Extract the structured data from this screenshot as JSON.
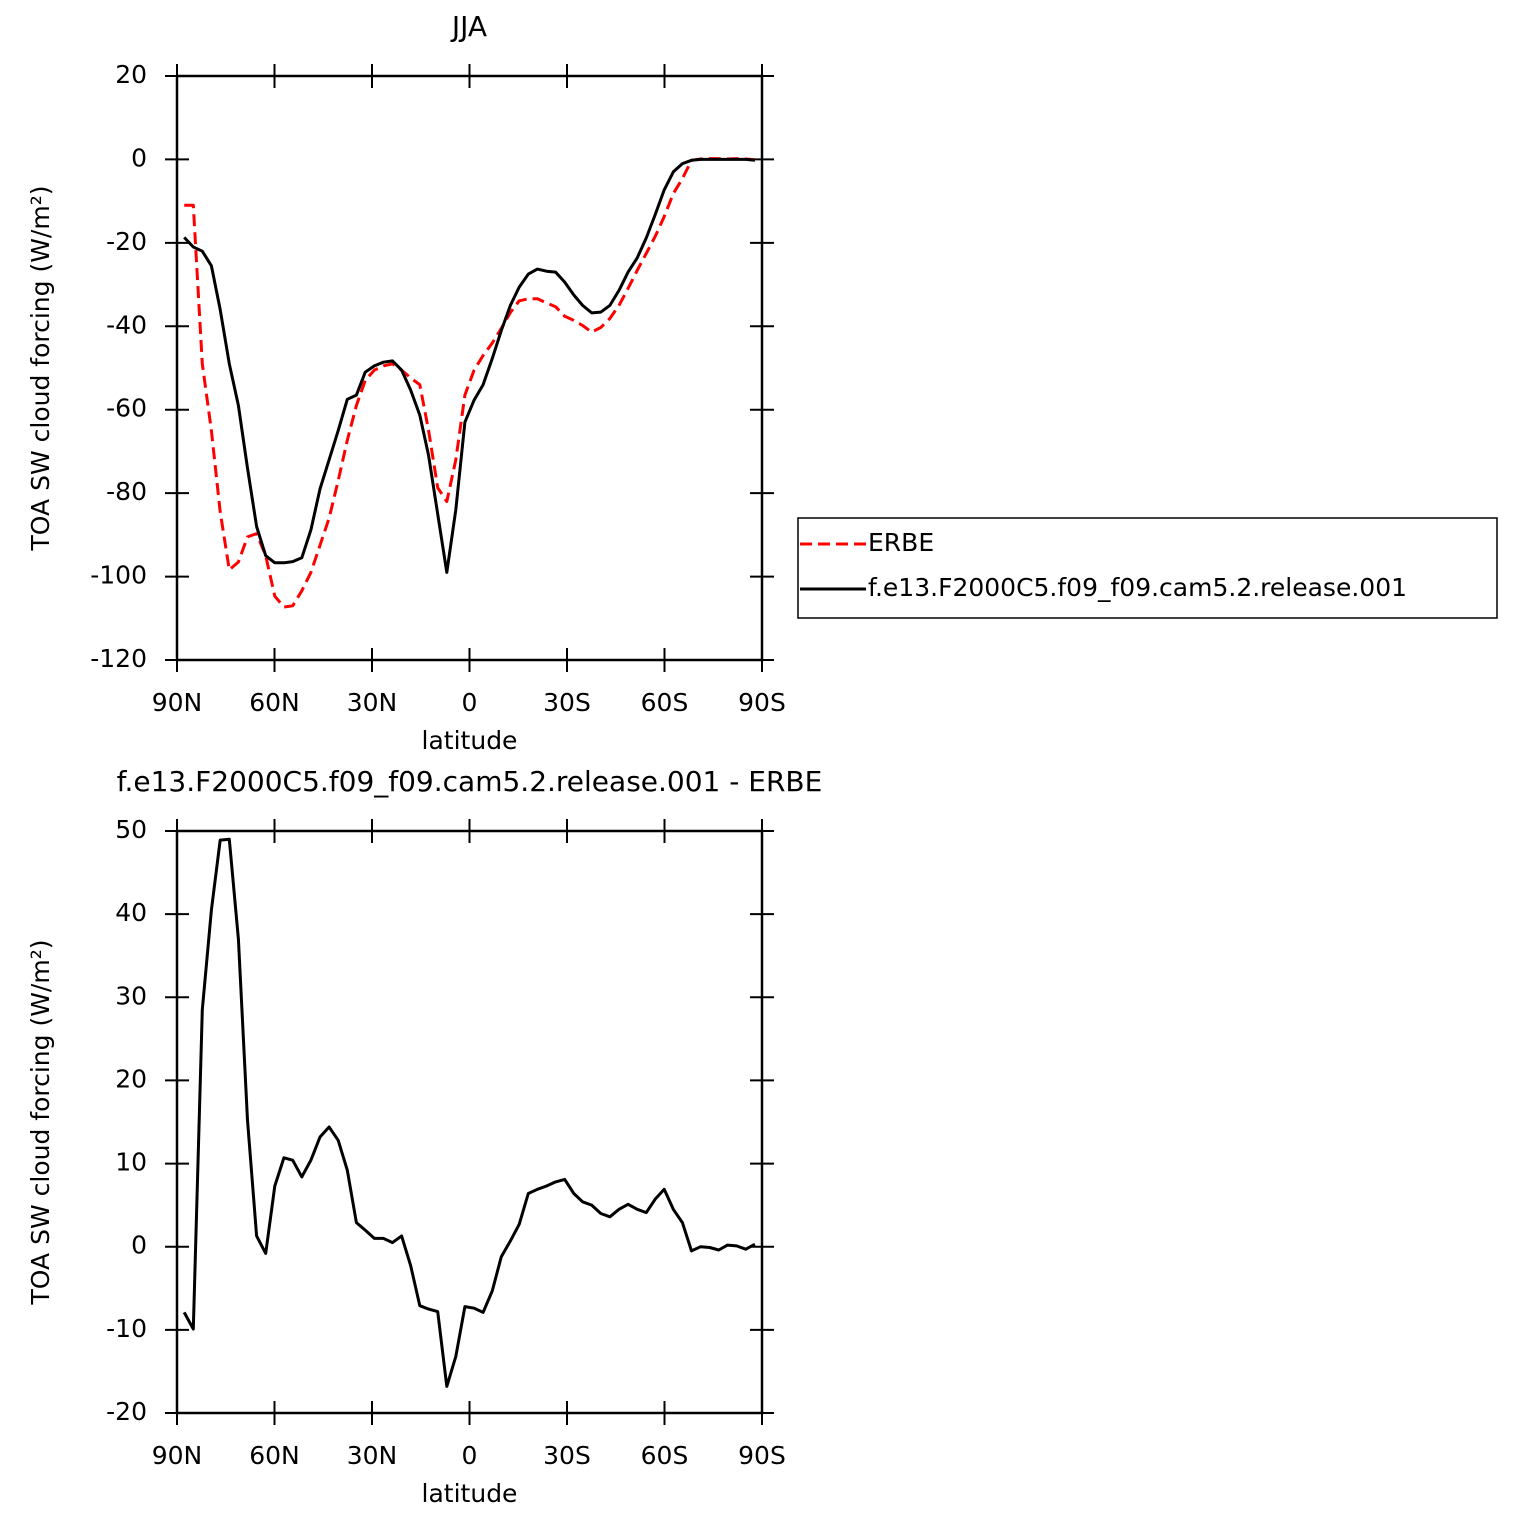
{
  "chart_data": [
    {
      "type": "line",
      "title": "JJA",
      "xlabel": "latitude",
      "ylabel": "TOA SW cloud forcing (W/m²)",
      "xlim": [
        90,
        -90
      ],
      "ylim": [
        -120,
        20
      ],
      "xticks": [
        {
          "value": 90,
          "label": "90N"
        },
        {
          "value": 60,
          "label": "60N"
        },
        {
          "value": 30,
          "label": "30N"
        },
        0,
        {
          "value": -30,
          "label": "30S"
        },
        {
          "value": -60,
          "label": "60S"
        },
        {
          "value": -90,
          "label": "90S"
        }
      ],
      "yticks": [
        -120,
        -100,
        -80,
        -60,
        -40,
        -20,
        0,
        20
      ],
      "legend": "right",
      "x": [
        87.8,
        85.0,
        82.2,
        79.4,
        76.7,
        73.9,
        71.1,
        68.3,
        65.5,
        62.7,
        59.9,
        57.1,
        54.4,
        51.6,
        48.8,
        46.0,
        43.2,
        40.4,
        37.6,
        34.8,
        32.1,
        29.3,
        26.5,
        23.7,
        20.9,
        18.1,
        15.3,
        12.6,
        9.8,
        7.0,
        4.2,
        1.4,
        -1.4,
        -4.2,
        -7.0,
        -9.8,
        -12.6,
        -15.3,
        -18.1,
        -20.9,
        -23.7,
        -26.5,
        -29.3,
        -32.1,
        -34.8,
        -37.6,
        -40.4,
        -43.2,
        -46.0,
        -48.8,
        -51.6,
        -54.4,
        -57.1,
        -59.9,
        -62.7,
        -65.5,
        -68.3,
        -71.1,
        -73.9,
        -76.7,
        -79.4,
        -82.2,
        -85.0,
        -87.8
      ],
      "series": [
        {
          "name": "ERBE",
          "color": "#ff0000",
          "linestyle": "dashed",
          "values": [
            -11,
            -11,
            -49,
            -65,
            -84.5,
            -98.4,
            -96.5,
            -90.5,
            -89.7,
            -95,
            -104.7,
            -107.3,
            -107,
            -103.4,
            -99,
            -92.5,
            -86,
            -77,
            -67.3,
            -59,
            -53,
            -50.5,
            -49.5,
            -49,
            -50.5,
            -52.4,
            -54,
            -65,
            -78.7,
            -82,
            -72,
            -56.5,
            -50.5,
            -47,
            -44,
            -40.5,
            -36.7,
            -33.9,
            -33.4,
            -33.4,
            -34.4,
            -35.3,
            -37.6,
            -38.6,
            -39.8,
            -41.4,
            -40.3,
            -38.1,
            -35,
            -30.9,
            -26.6,
            -22.5,
            -18.5,
            -13.7,
            -8.2,
            -4.6,
            -0.2,
            0.1,
            0.2,
            0.2,
            0.1,
            0.2,
            0.1,
            -0.1
          ]
        },
        {
          "name": "f.e13.F2000C5.f09_f09.cam5.2.release.001",
          "color": "#000000",
          "linestyle": "solid",
          "values": [
            -18.7,
            -21,
            -22,
            -25.5,
            -36,
            -49,
            -59,
            -74,
            -88,
            -95,
            -96.7,
            -96.7,
            -96.4,
            -95.5,
            -88.8,
            -79,
            -72,
            -65,
            -57.5,
            -56.5,
            -51,
            -49.5,
            -48.6,
            -48.3,
            -50.5,
            -55.3,
            -61.3,
            -71,
            -85,
            -99,
            -84,
            -63,
            -57.7,
            -54,
            -47.7,
            -41,
            -35,
            -30.6,
            -27.5,
            -26.3,
            -26.8,
            -27,
            -29.4,
            -32.5,
            -35,
            -36.8,
            -36.6,
            -35,
            -31.4,
            -27,
            -23.6,
            -18.8,
            -13.3,
            -7.3,
            -3,
            -1,
            -0.2,
            0,
            0,
            0,
            0,
            0,
            0,
            -0.2
          ]
        }
      ]
    },
    {
      "type": "line",
      "title": "f.e13.F2000C5.f09_f09.cam5.2.release.001 - ERBE",
      "xlabel": "latitude",
      "ylabel": "TOA SW cloud forcing (W/m²)",
      "xlim": [
        90,
        -90
      ],
      "ylim": [
        -20,
        50
      ],
      "xticks": [
        {
          "value": 90,
          "label": "90N"
        },
        {
          "value": 60,
          "label": "60N"
        },
        {
          "value": 30,
          "label": "30N"
        },
        0,
        {
          "value": -30,
          "label": "30S"
        },
        {
          "value": -60,
          "label": "60S"
        },
        {
          "value": -90,
          "label": "90S"
        }
      ],
      "yticks": [
        -20,
        -10,
        0,
        10,
        20,
        30,
        40,
        50
      ],
      "x": [
        87.8,
        85.0,
        82.2,
        79.4,
        76.7,
        73.9,
        71.1,
        68.3,
        65.5,
        62.7,
        59.9,
        57.1,
        54.4,
        51.6,
        48.8,
        46.0,
        43.2,
        40.4,
        37.6,
        34.8,
        32.1,
        29.3,
        26.5,
        23.7,
        20.9,
        18.1,
        15.3,
        12.6,
        9.8,
        7.0,
        4.2,
        1.4,
        -1.4,
        -4.2,
        -7.0,
        -9.8,
        -12.6,
        -15.3,
        -18.1,
        -20.9,
        -23.7,
        -26.5,
        -29.3,
        -32.1,
        -34.8,
        -37.6,
        -40.4,
        -43.2,
        -46.0,
        -48.8,
        -51.6,
        -54.4,
        -57.1,
        -59.9,
        -62.7,
        -65.5,
        -68.3,
        -71.1,
        -73.9,
        -76.7,
        -79.4,
        -82.2,
        -85.0,
        -87.8
      ],
      "series": [
        {
          "color": "#000000",
          "linestyle": "solid",
          "values": [
            -7.9,
            -9.9,
            28.5,
            40.5,
            48.9,
            49,
            37,
            15.2,
            1.3,
            -0.8,
            7.3,
            10.7,
            10.4,
            8.4,
            10.4,
            13.2,
            14.4,
            12.8,
            9.2,
            2.9,
            2,
            1,
            1,
            0.5,
            1.3,
            -2.3,
            -7.1,
            -7.5,
            -7.8,
            -16.8,
            -13.2,
            -7.2,
            -7.4,
            -7.9,
            -5.3,
            -1.2,
            0.7,
            2.7,
            6.4,
            6.9,
            7.3,
            7.8,
            8.1,
            6.4,
            5.4,
            5,
            4,
            3.6,
            4.5,
            5.1,
            4.5,
            4.1,
            5.7,
            6.9,
            4.5,
            2.9,
            -0.5,
            0,
            -0.1,
            -0.4,
            0.2,
            0.1,
            -0.3,
            0.3
          ]
        }
      ]
    }
  ]
}
